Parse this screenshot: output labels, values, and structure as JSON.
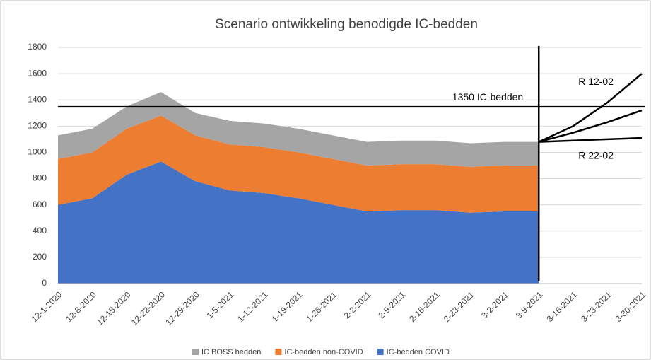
{
  "chart_data": {
    "type": "stacked_area",
    "title": "Scenario ontwikkeling benodigde IC-bedden",
    "categories": [
      "12-1-2020",
      "12-8-2020",
      "12-15-2020",
      "12-22-2020",
      "12-29-2020",
      "1-5-2021",
      "1-12-2021",
      "1-19-2021",
      "1-26-2021",
      "2-2-2021",
      "2-9-2021",
      "2-16-2021",
      "2-23-2021",
      "3-2-2021",
      "3-9-2021",
      "3-16-2021",
      "3-23-2021",
      "3-30-2021"
    ],
    "series": [
      {
        "name": "IC BOSS bedden",
        "color": "#a5a5a5",
        "values": [
          180,
          180,
          170,
          180,
          170,
          180,
          180,
          180,
          180,
          180,
          180,
          180,
          180,
          180,
          180,
          null,
          null,
          null
        ]
      },
      {
        "name": "IC-bedden non-COVID",
        "color": "#ed7d31",
        "values": [
          350,
          350,
          350,
          350,
          350,
          350,
          350,
          350,
          350,
          350,
          350,
          350,
          350,
          350,
          350,
          null,
          null,
          null
        ]
      },
      {
        "name": "IC-bedden COVID",
        "color": "#4472c4",
        "values": [
          600,
          650,
          830,
          930,
          780,
          710,
          690,
          650,
          600,
          550,
          560,
          560,
          540,
          550,
          550,
          null,
          null,
          null
        ]
      }
    ],
    "projections": [
      {
        "label": "R 12-02",
        "values": [
          null,
          null,
          null,
          null,
          null,
          null,
          null,
          null,
          null,
          null,
          null,
          null,
          null,
          null,
          1080,
          1200,
          1380,
          1600
        ]
      },
      {
        "label": null,
        "values": [
          null,
          null,
          null,
          null,
          null,
          null,
          null,
          null,
          null,
          null,
          null,
          null,
          null,
          null,
          1080,
          1150,
          1230,
          1320
        ]
      },
      {
        "label": "R 22-02",
        "values": [
          null,
          null,
          null,
          null,
          null,
          null,
          null,
          null,
          null,
          null,
          null,
          null,
          null,
          null,
          1080,
          1090,
          1100,
          1110
        ]
      }
    ],
    "reference_line": {
      "value": 1350,
      "label": "1350 IC-bedden"
    },
    "ylim": [
      0,
      1800
    ],
    "yticks": [
      0,
      200,
      400,
      600,
      800,
      1000,
      1200,
      1400,
      1600,
      1800
    ]
  }
}
